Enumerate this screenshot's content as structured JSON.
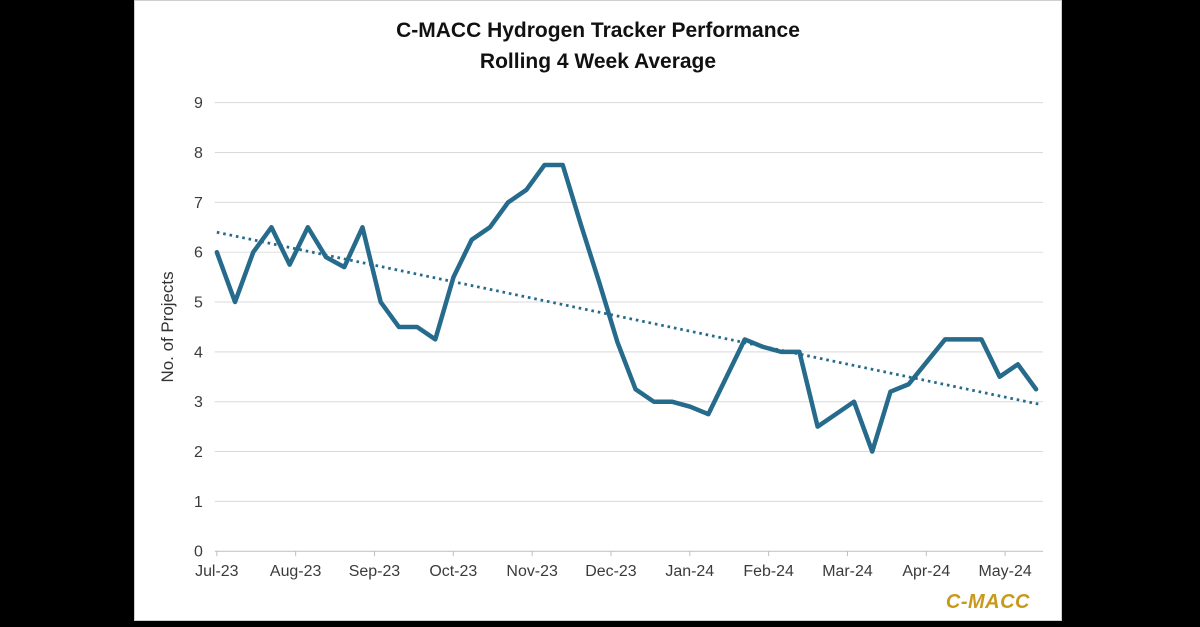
{
  "title": {
    "line1": "C-MACC Hydrogen Tracker Performance",
    "line2": "Rolling 4 Week Average"
  },
  "y_axis": {
    "label": "No. of Projects",
    "min": 0,
    "max": 9,
    "tick_step": 1
  },
  "x_axis": {
    "labels": [
      "Jul-23",
      "Aug-23",
      "Sep-23",
      "Oct-23",
      "Nov-23",
      "Dec-23",
      "Jan-24",
      "Feb-24",
      "Mar-24",
      "Apr-24",
      "May-24"
    ]
  },
  "logo": {
    "text": "C-MACC"
  },
  "colors": {
    "line": "#266A8C",
    "trend": "#266A8C",
    "grid": "#D9D9D9",
    "axis": "#BFBFBF",
    "tick_text": "#3B3B3B",
    "axis_title_text": "#333333",
    "title_text": "#111111",
    "logo": "#C9991C",
    "panel_background": "#FFFFFF",
    "letterbox": "#000000"
  },
  "chart_data": {
    "type": "line",
    "title": "C-MACC Hydrogen Tracker Performance",
    "subtitle": "Rolling 4 Week Average",
    "xlabel": "",
    "ylabel": "No. of Projects",
    "ylim": [
      0,
      9
    ],
    "grid": "horizontal",
    "legend": "none",
    "categories": [
      "Jul-23",
      "Aug-23",
      "Sep-23",
      "Oct-23",
      "Nov-23",
      "Dec-23",
      "Jan-24",
      "Feb-24",
      "Mar-24",
      "Apr-24",
      "May-24"
    ],
    "x_cadence": "weekly, starting at Jul-23 tick, ~4.33 weeks per month",
    "series": [
      {
        "name": "Rolling 4 Week Average of No. of Projects",
        "values": [
          6,
          5,
          6,
          6.5,
          5.75,
          6.5,
          5.9,
          5.7,
          6.5,
          5,
          4.5,
          4.5,
          4.25,
          5.5,
          6.25,
          6.5,
          7,
          7.25,
          7.75,
          7.75,
          6.55,
          5.4,
          4.2,
          3.25,
          3,
          3,
          2.9,
          2.75,
          3.5,
          4.25,
          4.1,
          4,
          4,
          2.5,
          2.75,
          3,
          2,
          3.2,
          3.35,
          3.8,
          4.25,
          4.25,
          4.25,
          3.5,
          3.75,
          3.25
        ]
      }
    ],
    "trend": {
      "name": "Linear trend (dotted)",
      "start_value": 6.4,
      "end_value": 2.95
    }
  }
}
